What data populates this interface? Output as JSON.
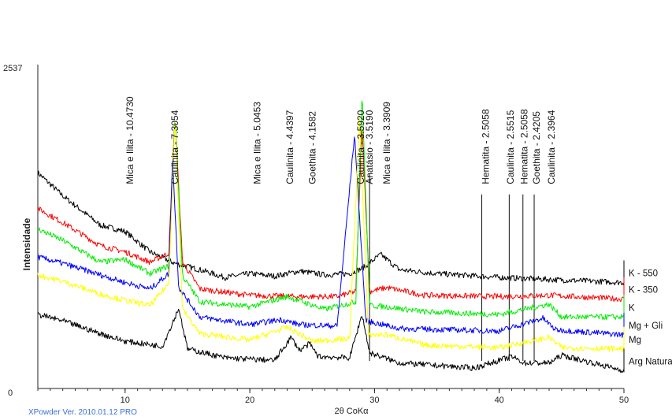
{
  "chart_data": {
    "type": "line",
    "ylabel": "Intensidade",
    "xlabel": "2θ CoKα",
    "xlim": [
      3,
      50
    ],
    "ylim": [
      0,
      2537
    ],
    "y_ticks": [
      "2537",
      "0"
    ],
    "x_ticks": [
      {
        "value": 10,
        "label": "10"
      },
      {
        "value": 20,
        "label": "20"
      },
      {
        "value": 30,
        "label": "30"
      },
      {
        "value": 40,
        "label": "40"
      },
      {
        "value": 50,
        "label": "50"
      }
    ],
    "footer": "XPowder Ver. 2010.01.12 PRO",
    "series": [
      {
        "name": "K - 550",
        "color": "#000000",
        "points": [
          [
            3,
            1690
          ],
          [
            5,
            1510
          ],
          [
            8,
            1280
          ],
          [
            10,
            1230
          ],
          [
            12,
            1070
          ],
          [
            14,
            980
          ],
          [
            16,
            930
          ],
          [
            18,
            870
          ],
          [
            20,
            900
          ],
          [
            22,
            880
          ],
          [
            24,
            920
          ],
          [
            26,
            890
          ],
          [
            28,
            900
          ],
          [
            29,
            940
          ],
          [
            30.5,
            1050
          ],
          [
            32,
            930
          ],
          [
            35,
            900
          ],
          [
            40,
            870
          ],
          [
            45,
            850
          ],
          [
            50,
            830
          ]
        ]
      },
      {
        "name": "K - 350",
        "color": "#ff0000",
        "points": [
          [
            3,
            1410
          ],
          [
            5,
            1300
          ],
          [
            8,
            1120
          ],
          [
            10,
            1070
          ],
          [
            12,
            990
          ],
          [
            13.5,
            1060
          ],
          [
            14,
            2140
          ],
          [
            14.6,
            990
          ],
          [
            16,
            780
          ],
          [
            20,
            730
          ],
          [
            24,
            720
          ],
          [
            27,
            720
          ],
          [
            28.5,
            760
          ],
          [
            29,
            2070
          ],
          [
            29.6,
            760
          ],
          [
            31,
            790
          ],
          [
            34,
            730
          ],
          [
            40,
            720
          ],
          [
            44,
            730
          ],
          [
            50,
            700
          ]
        ]
      },
      {
        "name": "K",
        "color": "#00ee00",
        "points": [
          [
            3,
            1250
          ],
          [
            5,
            1160
          ],
          [
            8,
            990
          ],
          [
            10,
            1010
          ],
          [
            12,
            900
          ],
          [
            13.5,
            960
          ],
          [
            14,
            2140
          ],
          [
            14.6,
            880
          ],
          [
            16,
            680
          ],
          [
            20,
            640
          ],
          [
            23,
            720
          ],
          [
            26,
            620
          ],
          [
            28.5,
            680
          ],
          [
            29,
            2320
          ],
          [
            29.6,
            650
          ],
          [
            31,
            640
          ],
          [
            34,
            600
          ],
          [
            40,
            580
          ],
          [
            44,
            660
          ],
          [
            45,
            560
          ],
          [
            50,
            560
          ]
        ]
      },
      {
        "name": "Mg + Gli",
        "color": "#0000ff",
        "points": [
          [
            3,
            1030
          ],
          [
            5,
            980
          ],
          [
            8,
            890
          ],
          [
            10,
            830
          ],
          [
            12,
            780
          ],
          [
            13.5,
            900
          ],
          [
            13.8,
            1800
          ],
          [
            14.3,
            790
          ],
          [
            16,
            560
          ],
          [
            20,
            500
          ],
          [
            22.5,
            540
          ],
          [
            24,
            500
          ],
          [
            27,
            490
          ],
          [
            28.4,
            1990
          ],
          [
            29.3,
            530
          ],
          [
            32,
            470
          ],
          [
            36,
            460
          ],
          [
            40,
            450
          ],
          [
            43.5,
            550
          ],
          [
            44.5,
            460
          ],
          [
            50,
            420
          ]
        ]
      },
      {
        "name": "Mg",
        "color": "#ffff00",
        "points": [
          [
            3,
            890
          ],
          [
            5,
            840
          ],
          [
            8,
            740
          ],
          [
            10,
            690
          ],
          [
            12,
            650
          ],
          [
            13.5,
            820
          ],
          [
            14,
            2110
          ],
          [
            14.6,
            620
          ],
          [
            16,
            430
          ],
          [
            20,
            380
          ],
          [
            23,
            480
          ],
          [
            25,
            370
          ],
          [
            28,
            390
          ],
          [
            28.8,
            2120
          ],
          [
            29.5,
            420
          ],
          [
            31,
            420
          ],
          [
            34,
            340
          ],
          [
            40,
            320
          ],
          [
            44,
            400
          ],
          [
            45,
            320
          ],
          [
            50,
            310
          ]
        ]
      },
      {
        "name": "Arg Natural",
        "color": "#000000",
        "points": [
          [
            3,
            580
          ],
          [
            5,
            530
          ],
          [
            8,
            430
          ],
          [
            10,
            370
          ],
          [
            13,
            330
          ],
          [
            14.3,
            630
          ],
          [
            15,
            310
          ],
          [
            18,
            240
          ],
          [
            22,
            220
          ],
          [
            23.3,
            400
          ],
          [
            24,
            300
          ],
          [
            24.8,
            350
          ],
          [
            25.5,
            250
          ],
          [
            28,
            240
          ],
          [
            29,
            580
          ],
          [
            29.6,
            280
          ],
          [
            32,
            200
          ],
          [
            38,
            160
          ],
          [
            41,
            250
          ],
          [
            42,
            200
          ],
          [
            44,
            200
          ],
          [
            45,
            260
          ],
          [
            50,
            140
          ]
        ]
      }
    ],
    "annotations": [
      {
        "text": "Mica e Ilita - 10.4730",
        "x": 10.4
      },
      {
        "text": "Caulinita - 7.3054",
        "x": 14.0
      },
      {
        "text": "Mica e Ilita - 5.0453",
        "x": 20.6
      },
      {
        "text": "Caulinita - 4.4397",
        "x": 23.2
      },
      {
        "text": "Goethita - 4.1582",
        "x": 25.0
      },
      {
        "text": "Caulinita - 3.5920",
        "x": 28.9
      },
      {
        "text": "Anatásio - 3.5190",
        "x": 29.6
      },
      {
        "text": "Mica e Ilita - 3.3909",
        "x": 31.0
      },
      {
        "text": "Hematita - 2.5058",
        "x": 38.9
      },
      {
        "text": "Caulinita - 2.5515",
        "x": 40.9
      },
      {
        "text": "Hematita - 2.5058",
        "x": 42.0
      },
      {
        "text": "Goethita - 2.4205",
        "x": 43.0
      },
      {
        "text": "Caulinita - 2.3964",
        "x": 44.2
      }
    ],
    "marker_lines": [
      {
        "x": 29.6,
        "y_top": 1680
      },
      {
        "x": 38.6,
        "y_top": 1520
      },
      {
        "x": 40.8,
        "y_top": 1520
      },
      {
        "x": 41.9,
        "y_top": 1520
      },
      {
        "x": 42.8,
        "y_top": 1520
      }
    ],
    "grid": false,
    "legend": "right end of each trace"
  }
}
